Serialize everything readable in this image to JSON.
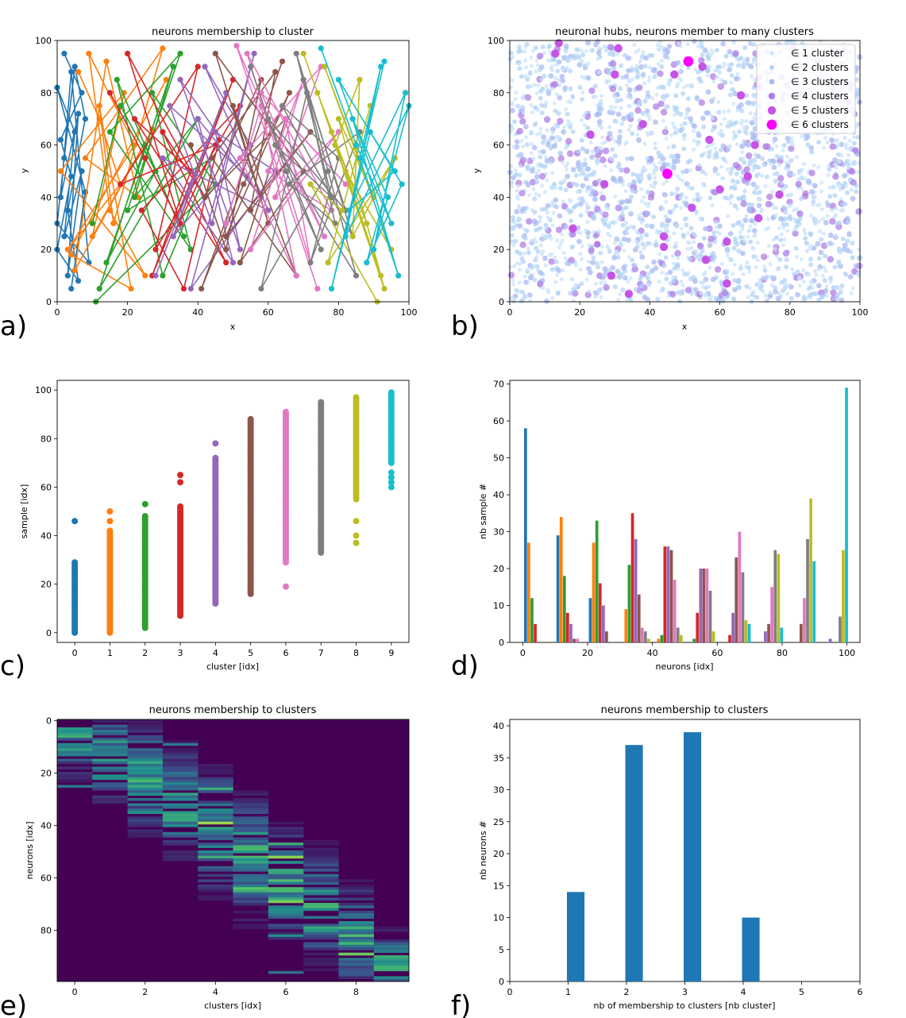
{
  "colors": [
    "#1f77b4",
    "#ff7f0e",
    "#2ca02c",
    "#d62728",
    "#9467bd",
    "#8c564b",
    "#e377c2",
    "#7f7f7f",
    "#bcbd22",
    "#17becf"
  ],
  "chart_data": [
    {
      "panel": "a)",
      "type": "line",
      "title": "neurons membership to cluster",
      "xlabel": "x",
      "ylabel": "y",
      "xlim": [
        0,
        100
      ],
      "ylim": [
        0,
        100
      ],
      "xticks": [
        "0",
        "20",
        "40",
        "60",
        "80",
        "100"
      ],
      "yticks": [
        "0",
        "20",
        "40",
        "60",
        "80",
        "100"
      ],
      "series": [
        {
          "x": [
            2,
            7,
            1,
            4,
            0,
            6,
            3,
            8,
            5,
            2,
            0,
            9,
            4,
            1,
            6,
            3,
            7,
            2,
            5,
            0,
            8,
            4
          ],
          "y": [
            95,
            80,
            62,
            48,
            20,
            8,
            35,
            70,
            90,
            55,
            30,
            15,
            88,
            40,
            72,
            10,
            50,
            25,
            65,
            82,
            42,
            5
          ]
        },
        {
          "x": [
            6,
            12,
            18,
            3,
            22,
            9,
            15,
            25,
            1,
            19,
            10,
            27,
            5,
            14,
            23,
            8,
            30,
            16,
            12,
            21,
            4,
            31
          ],
          "y": [
            88,
            70,
            45,
            20,
            60,
            95,
            35,
            10,
            50,
            80,
            25,
            66,
            12,
            92,
            40,
            55,
            97,
            30,
            75,
            5,
            18,
            85
          ]
        },
        {
          "x": [
            10,
            18,
            28,
            14,
            33,
            22,
            40,
            12,
            25,
            36,
            17,
            30,
            44,
            20,
            35,
            15,
            38,
            27,
            45,
            11
          ],
          "y": [
            30,
            75,
            50,
            15,
            90,
            40,
            70,
            5,
            60,
            25,
            85,
            10,
            55,
            35,
            95,
            65,
            20,
            80,
            45,
            0
          ]
        },
        {
          "x": [
            15,
            25,
            35,
            20,
            42,
            30,
            48,
            22,
            38,
            27,
            50,
            33,
            45,
            18,
            40,
            28,
            52,
            24,
            36,
            46
          ],
          "y": [
            80,
            55,
            30,
            95,
            40,
            65,
            15,
            70,
            50,
            10,
            85,
            25,
            60,
            45,
            90,
            20,
            75,
            35,
            5,
            62
          ]
        },
        {
          "x": [
            28,
            38,
            48,
            33,
            55,
            42,
            60,
            30,
            50,
            40,
            58,
            35,
            52,
            45,
            62,
            38,
            56,
            44,
            32,
            54
          ],
          "y": [
            10,
            45,
            80,
            25,
            60,
            90,
            35,
            55,
            15,
            70,
            40,
            85,
            20,
            65,
            50,
            5,
            95,
            30,
            75,
            48
          ]
        },
        {
          "x": [
            38,
            48,
            58,
            42,
            65,
            52,
            70,
            45,
            60,
            50,
            68,
            44,
            62,
            55,
            72,
            48,
            66,
            53,
            41,
            64
          ],
          "y": [
            60,
            20,
            85,
            40,
            70,
            15,
            50,
            95,
            30,
            75,
            10,
            55,
            88,
            35,
            65,
            25,
            80,
            45,
            5,
            92
          ]
        },
        {
          "x": [
            48,
            58,
            68,
            52,
            75,
            62,
            80,
            55,
            70,
            60,
            78,
            54,
            72,
            65,
            82,
            58,
            76,
            63,
            51,
            74
          ],
          "y": [
            30,
            75,
            10,
            55,
            90,
            40,
            65,
            20,
            85,
            50,
            35,
            95,
            15,
            70,
            45,
            80,
            25,
            60,
            98,
            5
          ]
        },
        {
          "x": [
            55,
            65,
            75,
            60,
            82,
            70,
            85,
            62,
            78,
            68,
            84,
            64,
            80,
            72,
            86,
            66,
            79,
            71,
            58,
            77
          ],
          "y": [
            90,
            50,
            20,
            70,
            35,
            85,
            10,
            60,
            40,
            95,
            25,
            75,
            55,
            15,
            65,
            45,
            30,
            80,
            5,
            50
          ]
        },
        {
          "x": [
            70,
            78,
            88,
            74,
            92,
            82,
            95,
            76,
            90,
            80,
            93,
            79,
            86,
            84,
            96,
            77,
            89,
            81,
            72,
            91
          ],
          "y": [
            95,
            65,
            30,
            80,
            10,
            50,
            20,
            90,
            40,
            70,
            5,
            60,
            85,
            25,
            55,
            15,
            75,
            35,
            45,
            0
          ]
        },
        {
          "x": [
            75,
            85,
            95,
            80,
            98,
            88,
            100,
            82,
            92,
            86,
            97,
            84,
            94,
            90,
            99,
            83,
            96,
            89,
            78,
            93
          ],
          "y": [
            97,
            60,
            30,
            85,
            45,
            15,
            75,
            25,
            90,
            55,
            10,
            70,
            40,
            20,
            80,
            35,
            50,
            65,
            5,
            92
          ]
        }
      ]
    },
    {
      "panel": "b)",
      "type": "scatter",
      "title": "neuronal hubs, neurons member to many clusters",
      "xlabel": "x",
      "ylabel": "y",
      "xlim": [
        0,
        100
      ],
      "ylim": [
        0,
        100
      ],
      "xticks": [
        "0",
        "20",
        "40",
        "60",
        "80",
        "100"
      ],
      "yticks": [
        "0",
        "20",
        "40",
        "60",
        "80",
        "100"
      ],
      "legend": [
        "∈ 1 cluster",
        "∈ 2 clusters",
        "∈ 3 clusters",
        "∈ 4 clusters",
        "∈ 5 clusters",
        "∈ 6 clusters"
      ],
      "legend_loc": "top-right",
      "hubs": [
        {
          "x": 14,
          "y": 99,
          "n": 5
        },
        {
          "x": 13,
          "y": 95,
          "n": 5
        },
        {
          "x": 51,
          "y": 92,
          "n": 6
        },
        {
          "x": 45,
          "y": 49,
          "n": 6
        },
        {
          "x": 38,
          "y": 68,
          "n": 5
        },
        {
          "x": 23,
          "y": 64,
          "n": 5
        },
        {
          "x": 30,
          "y": 87,
          "n": 5
        },
        {
          "x": 55,
          "y": 90,
          "n": 5
        },
        {
          "x": 60,
          "y": 43,
          "n": 5
        },
        {
          "x": 68,
          "y": 48,
          "n": 5
        },
        {
          "x": 77,
          "y": 41,
          "n": 5
        },
        {
          "x": 70,
          "y": 60,
          "n": 5
        },
        {
          "x": 18,
          "y": 28,
          "n": 5
        },
        {
          "x": 44,
          "y": 25,
          "n": 5
        },
        {
          "x": 62,
          "y": 7,
          "n": 5
        },
        {
          "x": 34,
          "y": 3,
          "n": 5
        },
        {
          "x": 57,
          "y": 62,
          "n": 5
        },
        {
          "x": 66,
          "y": 79,
          "n": 5
        },
        {
          "x": 47,
          "y": 87,
          "n": 5
        },
        {
          "x": 31,
          "y": 97,
          "n": 5
        },
        {
          "x": 52,
          "y": 36,
          "n": 5
        },
        {
          "x": 27,
          "y": 45,
          "n": 5
        },
        {
          "x": 71,
          "y": 32,
          "n": 5
        },
        {
          "x": 62,
          "y": 23,
          "n": 5
        },
        {
          "x": 56,
          "y": 16,
          "n": 5
        },
        {
          "x": 44,
          "y": 21,
          "n": 5
        },
        {
          "x": 29,
          "y": 10,
          "n": 5
        },
        {
          "x": 25,
          "y": 22,
          "n": 4
        }
      ]
    },
    {
      "panel": "c)",
      "type": "scatter",
      "xlabel": "cluster [idx]",
      "ylabel": "sample [idx]",
      "xlim": [
        -0.5,
        9.5
      ],
      "ylim": [
        -4,
        104
      ],
      "xticks": [
        "0",
        "1",
        "2",
        "3",
        "4",
        "5",
        "6",
        "7",
        "8",
        "9"
      ],
      "yticks": [
        "0",
        "20",
        "40",
        "60",
        "80",
        "100"
      ],
      "ranges": [
        {
          "cluster": 0,
          "min": 0,
          "max": 29,
          "outliers": [
            46
          ]
        },
        {
          "cluster": 1,
          "min": 0,
          "max": 42,
          "outliers": [
            46,
            50
          ]
        },
        {
          "cluster": 2,
          "min": 2,
          "max": 48,
          "outliers": [
            53
          ]
        },
        {
          "cluster": 3,
          "min": 7,
          "max": 52,
          "outliers": [
            62,
            65
          ]
        },
        {
          "cluster": 4,
          "min": 12,
          "max": 72,
          "outliers": [
            78
          ]
        },
        {
          "cluster": 5,
          "min": 16,
          "max": 88,
          "outliers": []
        },
        {
          "cluster": 6,
          "min": 29,
          "max": 91,
          "outliers": [
            19
          ]
        },
        {
          "cluster": 7,
          "min": 33,
          "max": 95,
          "outliers": []
        },
        {
          "cluster": 8,
          "min": 55,
          "max": 97,
          "outliers": [
            37,
            40,
            46
          ]
        },
        {
          "cluster": 9,
          "min": 70,
          "max": 99,
          "outliers": [
            60,
            62,
            64,
            66
          ]
        }
      ]
    },
    {
      "panel": "d)",
      "type": "bar",
      "xlabel": "neurons [idx]",
      "ylabel": "nb sample #",
      "xlim": [
        -4,
        104
      ],
      "ylim": [
        0,
        71
      ],
      "xticks": [
        "0",
        "20",
        "40",
        "60",
        "80",
        "100"
      ],
      "yticks": [
        "0",
        "10",
        "20",
        "30",
        "40",
        "50",
        "60",
        "70"
      ],
      "bins": [
        0,
        10,
        20,
        30,
        40,
        50,
        60,
        70,
        80,
        90
      ],
      "series": [
        {
          "values": [
            58,
            29,
            12,
            0,
            0,
            0,
            0,
            0,
            0,
            0
          ]
        },
        {
          "values": [
            27,
            34,
            27,
            9,
            1,
            0,
            0,
            0,
            0,
            0
          ]
        },
        {
          "values": [
            12,
            18,
            33,
            21,
            2,
            1,
            0,
            0,
            0,
            0
          ]
        },
        {
          "values": [
            5,
            8,
            16,
            35,
            26,
            8,
            2,
            0,
            0,
            0
          ]
        },
        {
          "values": [
            0,
            5,
            10,
            28,
            26,
            20,
            8,
            3,
            0,
            1
          ]
        },
        {
          "values": [
            0,
            1,
            3,
            13,
            25,
            20,
            23,
            5,
            5,
            0
          ]
        },
        {
          "values": [
            0,
            1,
            0,
            4,
            17,
            20,
            30,
            15,
            12,
            0
          ]
        },
        {
          "values": [
            0,
            0,
            0,
            3,
            4,
            14,
            19,
            25,
            28,
            7
          ]
        },
        {
          "values": [
            0,
            0,
            0,
            1,
            2,
            3,
            6,
            24,
            39,
            25
          ]
        },
        {
          "values": [
            0,
            0,
            0,
            0,
            0,
            0,
            5,
            4,
            22,
            69
          ]
        }
      ]
    },
    {
      "panel": "e)",
      "type": "heatmap",
      "title": "neurons membership to clusters",
      "xlabel": "clusters [idx]",
      "ylabel": "neurons [idx]",
      "xticks": [
        "0",
        "2",
        "4",
        "6",
        "8"
      ],
      "yticks": [
        "0",
        "20",
        "40",
        "60",
        "80"
      ],
      "rows": 100,
      "cols": 10
    },
    {
      "panel": "f)",
      "type": "bar",
      "title": "neurons membership to clusters",
      "xlabel": "nb of membership to clusters [nb cluster]",
      "ylabel": "nb neurons #",
      "xlim": [
        0,
        6
      ],
      "ylim": [
        0,
        41
      ],
      "xticks": [
        "0",
        "1",
        "2",
        "3",
        "4",
        "5",
        "6"
      ],
      "yticks": [
        "0",
        "5",
        "10",
        "15",
        "20",
        "25",
        "30",
        "35",
        "40"
      ],
      "categories": [
        1,
        2,
        3,
        4
      ],
      "values": [
        14,
        37,
        39,
        10
      ]
    }
  ]
}
